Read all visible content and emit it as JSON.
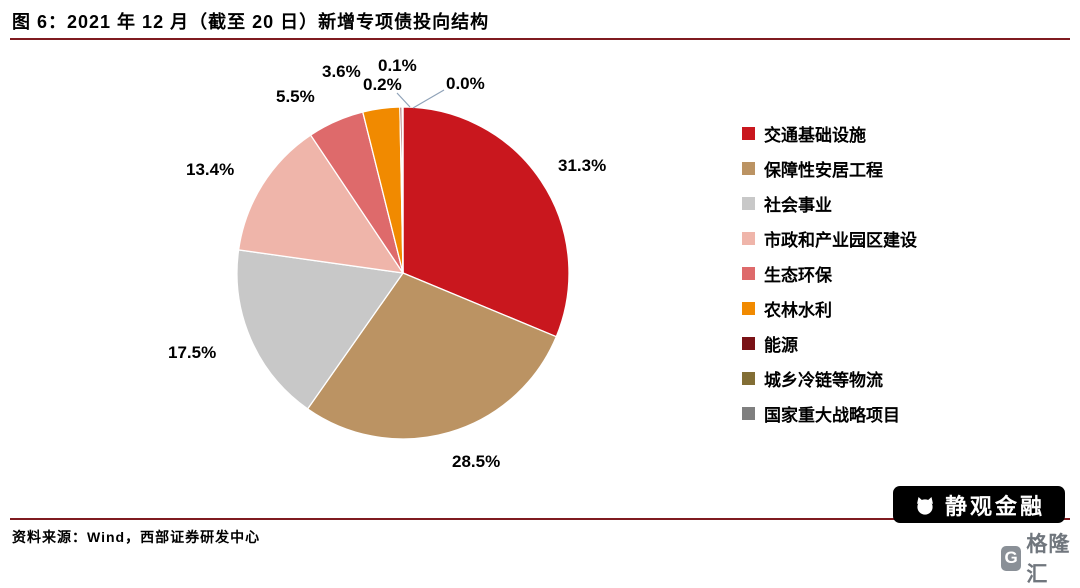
{
  "figure": {
    "title": "图 6：2021 年 12 月（截至 20 日）新增专项债投向结构",
    "source": "资料来源：Wind，西部证券研发中心"
  },
  "watermark": {
    "brand_primary": "静观金融",
    "brand_secondary": "格隆汇",
    "brand_secondary_initial": "G"
  },
  "chart_data": {
    "type": "pie",
    "title": "2021 年 12 月（截至 20 日）新增专项债投向结构",
    "legend_position": "right",
    "direction": "clockwise",
    "start_angle_deg": -90,
    "divider_color": "#7F1B20",
    "series": [
      {
        "name": "交通基础设施",
        "value": 31.3,
        "label": "31.3%",
        "color": "#C9171E"
      },
      {
        "name": "保障性安居工程",
        "value": 28.5,
        "label": "28.5%",
        "color": "#BB9363"
      },
      {
        "name": "社会事业",
        "value": 17.5,
        "label": "17.5%",
        "color": "#C8C8C8"
      },
      {
        "name": "市政和产业园区建设",
        "value": 13.4,
        "label": "13.4%",
        "color": "#EFB5AA"
      },
      {
        "name": "生态环保",
        "value": 5.5,
        "label": "5.5%",
        "color": "#DE6A6B"
      },
      {
        "name": "农林水利",
        "value": 3.6,
        "label": "3.6%",
        "color": "#F18A00"
      },
      {
        "name": "能源",
        "value": 0.2,
        "label": "0.2%",
        "color": "#7A1216"
      },
      {
        "name": "城乡冷链等物流",
        "value": 0.1,
        "label": "0.1%",
        "color": "#826E35"
      },
      {
        "name": "国家重大战略项目",
        "value": 0.0,
        "label": "0.0%",
        "color": "#7F7F7F"
      }
    ]
  }
}
